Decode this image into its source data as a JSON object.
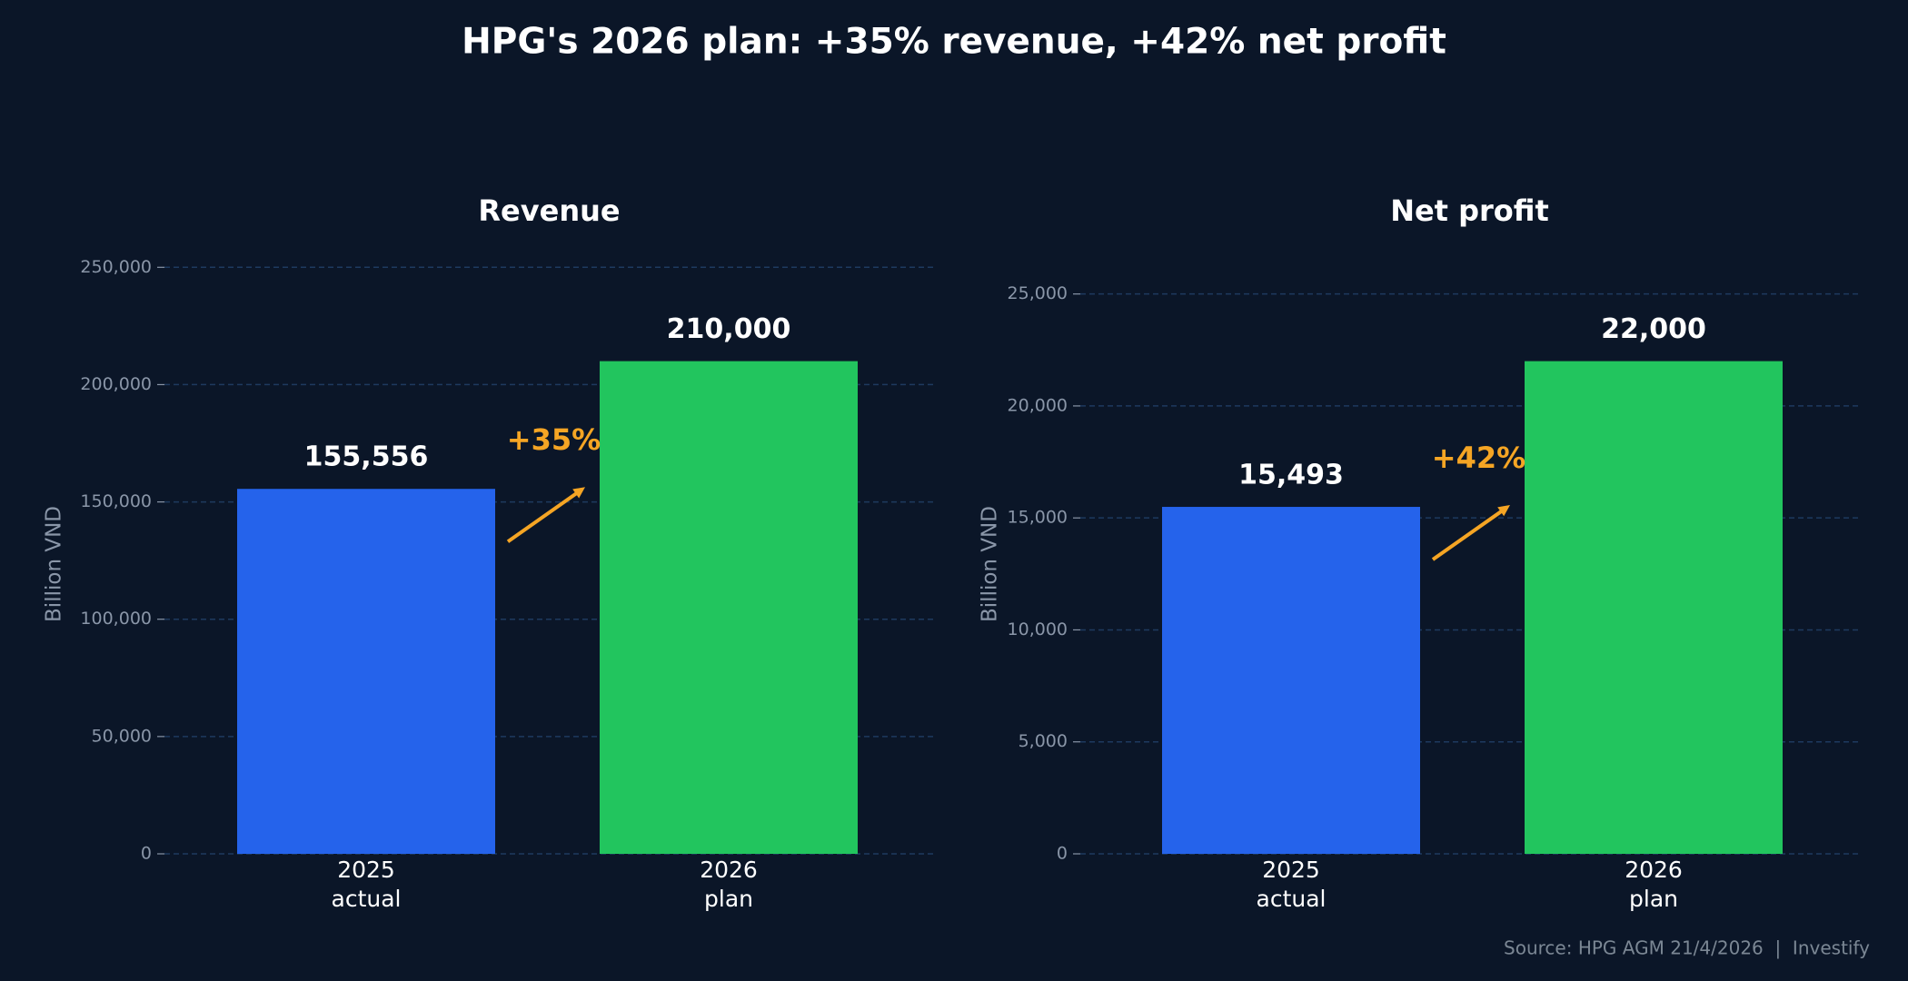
{
  "title": "HPG's 2026 plan: +35% revenue, +42% net profit",
  "source": "Source: HPG AGM 21/4/2026  |  Investify",
  "chart_data": [
    {
      "type": "bar",
      "title": "Revenue",
      "y_label": "Billion VND",
      "categories": [
        "2025\nactual",
        "2026\nplan"
      ],
      "values": [
        155556,
        210000
      ],
      "value_labels": [
        "155,556",
        "210,000"
      ],
      "colors": [
        "#2563eb",
        "#22c55e"
      ],
      "annotation": "+35%",
      "annotation_color": "#f5a524",
      "ylim": [
        0,
        262500
      ],
      "yticks": [
        0,
        {
          "value": 50000,
          "label": "50,000"
        },
        {
          "value": 100000,
          "label": "100,000"
        },
        {
          "value": 150000,
          "label": "150,000"
        },
        {
          "value": 200000,
          "label": "200,000"
        },
        {
          "value": 250000,
          "label": "250,000"
        }
      ],
      "grid": true
    },
    {
      "type": "bar",
      "title": "Net profit",
      "y_label": "Billion VND",
      "categories": [
        "2025\nactual",
        "2026\nplan"
      ],
      "values": [
        15493,
        22000
      ],
      "value_labels": [
        "15,493",
        "22,000"
      ],
      "colors": [
        "#2563eb",
        "#22c55e"
      ],
      "annotation": "+42%",
      "annotation_color": "#f5a524",
      "ylim": [
        0,
        27500
      ],
      "yticks": [
        0,
        {
          "value": 5000,
          "label": "5,000"
        },
        {
          "value": 10000,
          "label": "10,000"
        },
        {
          "value": 15000,
          "label": "15,000"
        },
        {
          "value": 20000,
          "label": "20,000"
        },
        {
          "value": 25000,
          "label": "25,000"
        }
      ],
      "grid": true
    }
  ]
}
